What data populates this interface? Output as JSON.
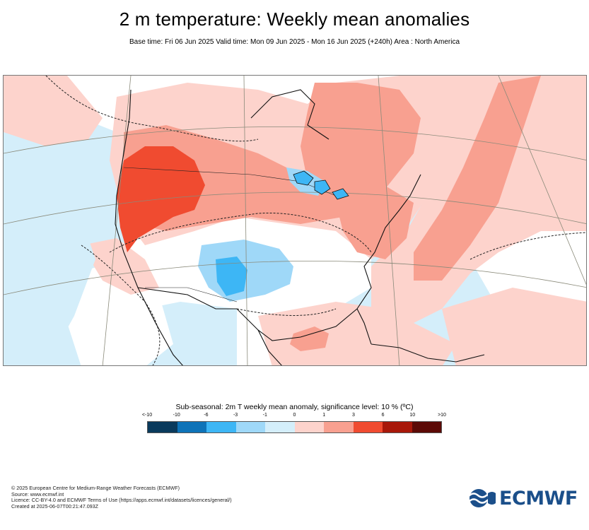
{
  "header": {
    "title": "2 m temperature: Weekly mean anomalies",
    "subtitle": "Base time: Fri 06 Jun 2025 Valid time: Mon 09 Jun 2025 - Mon 16 Jun 2025 (+240h) Area : North America"
  },
  "legend": {
    "title": "Sub-seasonal: 2m T weekly mean anomaly, significance level: 10 % (ºC)",
    "ticks": [
      "<-10",
      "-10",
      "-6",
      "-3",
      "-1",
      "0",
      "1",
      "3",
      "6",
      "10",
      ">10"
    ],
    "colors": [
      "#0a3a5c",
      "#0e73b8",
      "#3db6f5",
      "#9fd8f8",
      "#d4eefa",
      "#ffffff",
      "#fdd3cc",
      "#f8a090",
      "#f04b30",
      "#a8180a",
      "#5c0a06"
    ]
  },
  "footer": {
    "line1": "© 2025 European Centre for Medium-Range Weather Forecasts (ECMWF)",
    "line2": "Source: www.ecmwf.int",
    "line3": "Licence: CC-BY-4.0 and ECMWF Terms of Use (https://apps.ecmwf.int/datasets/licences/general/)",
    "line4": "Created at 2025-06-07T00:21:47.093Z"
  },
  "logo": {
    "text": "ECMWF",
    "color": "#1b4f8a"
  }
}
